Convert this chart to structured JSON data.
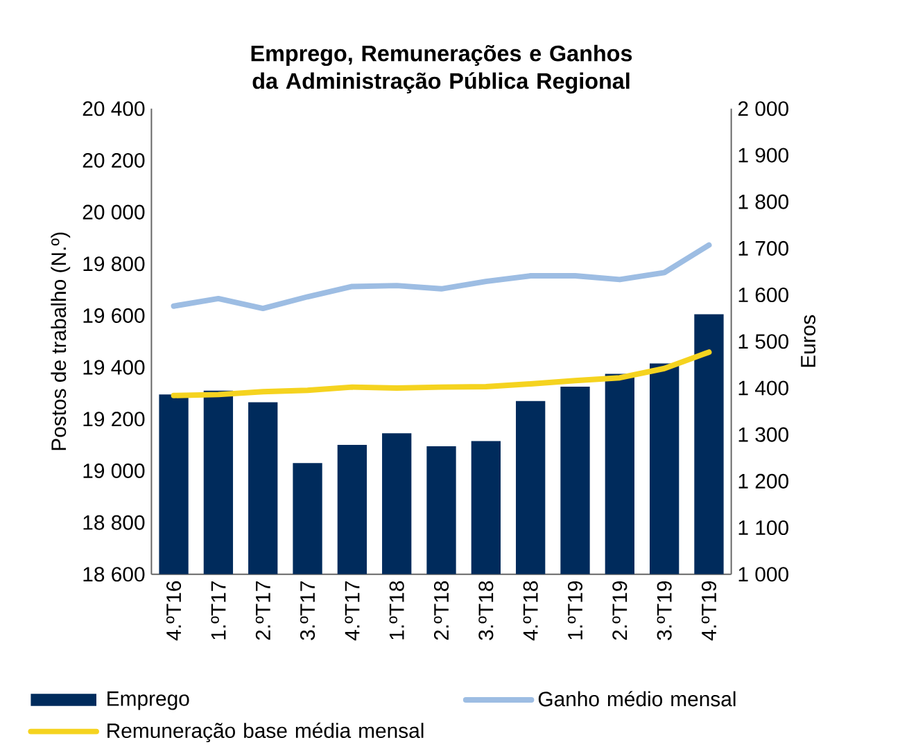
{
  "chart_data": {
    "type": "bar",
    "title": "Emprego, Remunerações e Ganhos  da Administração Pública Regional",
    "categories": [
      "4.ºT16",
      "1.ºT17",
      "2.ºT17",
      "3.ºT17",
      "4.ºT17",
      "1.ºT18",
      "2.ºT18",
      "3.ºT18",
      "4.ºT18",
      "1.ºT19",
      "2.ºT19",
      "3.ºT19",
      "4.ºT19"
    ],
    "series": [
      {
        "name": "Emprego",
        "color": "#002b5c",
        "values": [
          19295,
          19310,
          19265,
          19030,
          19100,
          19145,
          19095,
          19115,
          19270,
          19325,
          19375,
          19415,
          19605
        ]
      },
      {
        "name": "Ganho médio mensal",
        "type": "line",
        "axis": "y2",
        "color": "#9dbde3",
        "values": [
          1576,
          1592,
          1571,
          1596,
          1618,
          1620,
          1613,
          1629,
          1641,
          1641,
          1633,
          1648,
          1707
        ]
      },
      {
        "name": "Remuneração base média mensal",
        "type": "line",
        "axis": "y2",
        "color": "#f5d31f",
        "values": [
          1384,
          1386,
          1392,
          1395,
          1402,
          1400,
          1402,
          1403,
          1409,
          1416,
          1422,
          1442,
          1477
        ]
      }
    ],
    "ylabel": "Postos de trabalho (N.º)",
    "y2label": "Euros",
    "ylim": [
      18600,
      20400
    ],
    "yticks": [
      {
        "value": 18600,
        "label": "18 600"
      },
      {
        "value": 18800,
        "label": "18 800"
      },
      {
        "value": 19000,
        "label": "19 000"
      },
      {
        "value": 19200,
        "label": "19 200"
      },
      {
        "value": 19400,
        "label": "19 400"
      },
      {
        "value": 19600,
        "label": "19 600"
      },
      {
        "value": 19800,
        "label": "19 800"
      },
      {
        "value": 20000,
        "label": "20 000"
      },
      {
        "value": 20200,
        "label": "20 200"
      },
      {
        "value": 20400,
        "label": "20 400"
      }
    ],
    "y2lim": [
      1000,
      2000
    ],
    "y2ticks": [
      {
        "value": 1000,
        "label": "1 000"
      },
      {
        "value": 1100,
        "label": "1 100"
      },
      {
        "value": 1200,
        "label": "1 200"
      },
      {
        "value": 1300,
        "label": "1 300"
      },
      {
        "value": 1400,
        "label": "1 400"
      },
      {
        "value": 1500,
        "label": "1 500"
      },
      {
        "value": 1600,
        "label": "1 600"
      },
      {
        "value": 1700,
        "label": "1 700"
      },
      {
        "value": 1800,
        "label": "1 800"
      },
      {
        "value": 1900,
        "label": "1 900"
      },
      {
        "value": 2000,
        "label": "2 000"
      }
    ],
    "legend": "bottom",
    "grid": false
  }
}
